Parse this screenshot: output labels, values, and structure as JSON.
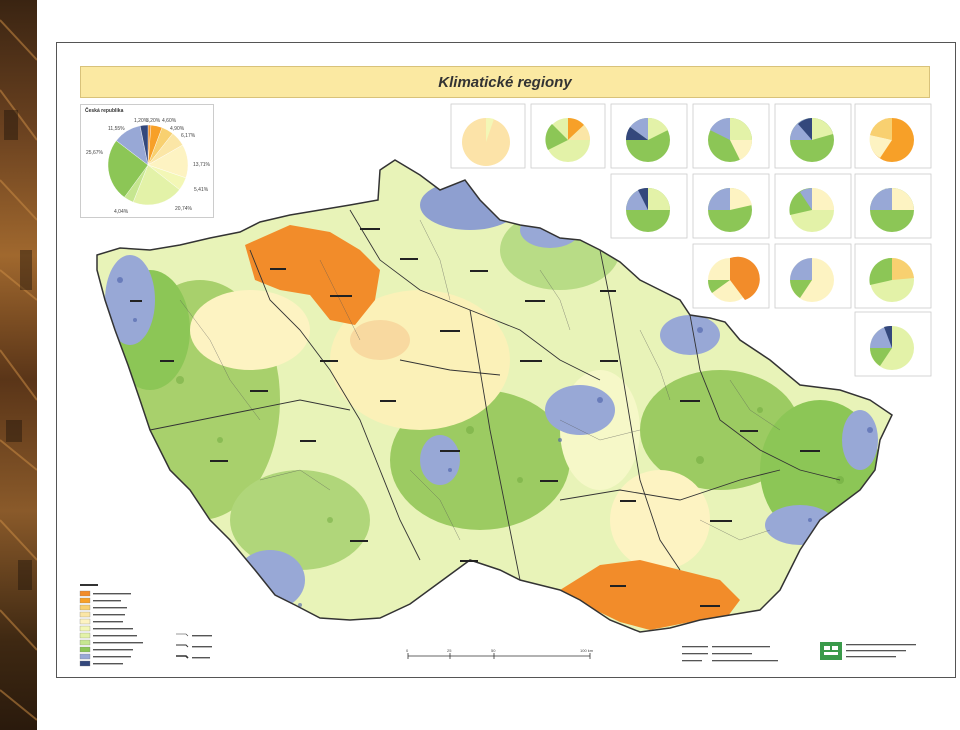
{
  "title": "Klimatické regiony",
  "czech_republic": {
    "title": "Česká republika",
    "slices": [
      {
        "label": "1,20%",
        "value": 1.2,
        "color": "#f0902a"
      },
      {
        "label": "4,60%",
        "value": 4.6,
        "color": "#f7a028"
      },
      {
        "label": "4,90%",
        "value": 4.9,
        "color": "#f8d070"
      },
      {
        "label": "6,17%",
        "value": 6.17,
        "color": "#fbe6a6"
      },
      {
        "label": "13,71%",
        "value": 13.71,
        "color": "#fdf3c2"
      },
      {
        "label": "5,41%",
        "value": 5.41,
        "color": "#f3f7b6"
      },
      {
        "label": "20,74%",
        "value": 20.74,
        "color": "#e3f2a8"
      },
      {
        "label": "4,04%",
        "value": 4.04,
        "color": "#c6e690"
      },
      {
        "label": "25,67%",
        "value": 25.67,
        "color": "#8cc656"
      },
      {
        "label": "11,55%",
        "value": 11.55,
        "color": "#98a8d6"
      },
      {
        "label": "3,20%",
        "value": 3.2,
        "color": "#34487c"
      }
    ]
  },
  "scale": {
    "labels": [
      "0",
      "25",
      "50",
      "100 km"
    ]
  }
}
